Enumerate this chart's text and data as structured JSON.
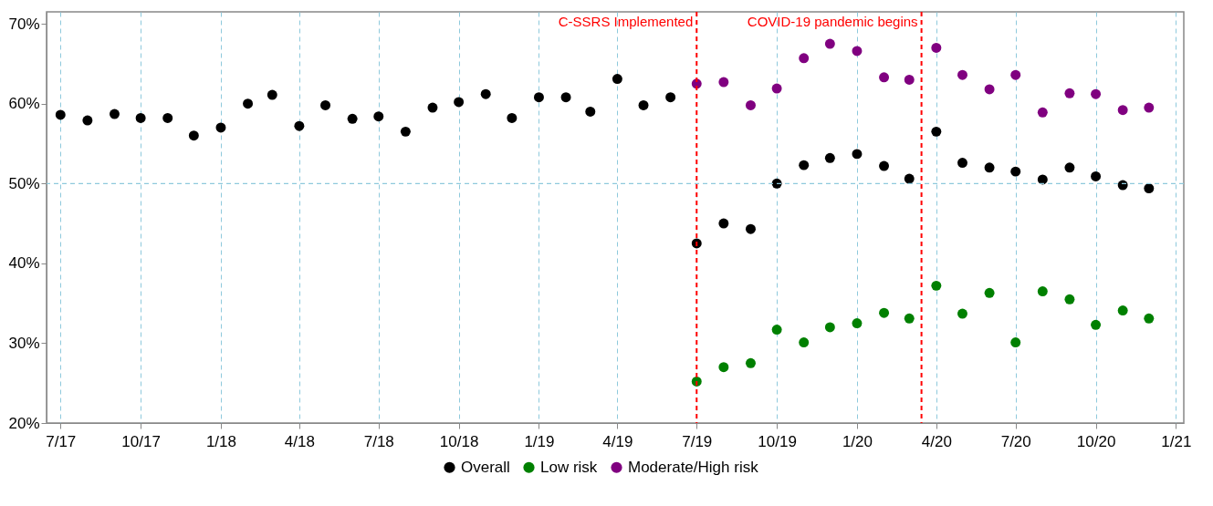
{
  "chart_data": {
    "type": "scatter",
    "series": [
      {
        "name": "Overall",
        "color": "#000000",
        "x": [
          "2017-07",
          "2017-08",
          "2017-09",
          "2017-10",
          "2017-11",
          "2017-12",
          "2018-01",
          "2018-02",
          "2018-03",
          "2018-04",
          "2018-05",
          "2018-06",
          "2018-07",
          "2018-08",
          "2018-09",
          "2018-10",
          "2018-11",
          "2018-12",
          "2019-01",
          "2019-02",
          "2019-03",
          "2019-04",
          "2019-05",
          "2019-06",
          "2019-07",
          "2019-08",
          "2019-09",
          "2019-10",
          "2019-11",
          "2019-12",
          "2020-01",
          "2020-02",
          "2020-03",
          "2020-04",
          "2020-05",
          "2020-06",
          "2020-07",
          "2020-08",
          "2020-09",
          "2020-10",
          "2020-11",
          "2020-12"
        ],
        "values": [
          58.6,
          57.9,
          58.7,
          58.2,
          58.2,
          56.0,
          57.0,
          60.0,
          61.1,
          57.2,
          59.8,
          58.1,
          58.4,
          56.5,
          59.5,
          60.2,
          61.2,
          58.2,
          60.8,
          60.8,
          59.0,
          63.1,
          59.8,
          60.8,
          42.5,
          45.0,
          44.3,
          50.0,
          52.3,
          53.2,
          53.7,
          52.2,
          50.6,
          56.5,
          52.6,
          52.0,
          51.5,
          50.5,
          52.0,
          50.9,
          49.8,
          49.4
        ]
      },
      {
        "name": "Low risk",
        "color": "#008000",
        "x": [
          "2019-07",
          "2019-08",
          "2019-09",
          "2019-10",
          "2019-11",
          "2019-12",
          "2020-01",
          "2020-02",
          "2020-03",
          "2020-04",
          "2020-05",
          "2020-06",
          "2020-07",
          "2020-08",
          "2020-09",
          "2020-10",
          "2020-11",
          "2020-12"
        ],
        "values": [
          25.2,
          27.0,
          27.5,
          31.7,
          30.1,
          32.0,
          32.5,
          33.8,
          33.1,
          37.2,
          33.7,
          36.3,
          30.1,
          36.5,
          35.5,
          32.3,
          34.1,
          33.1
        ]
      },
      {
        "name": "Moderate/High risk",
        "color": "#800080",
        "x": [
          "2019-07",
          "2019-08",
          "2019-09",
          "2019-10",
          "2019-11",
          "2019-12",
          "2020-01",
          "2020-02",
          "2020-03",
          "2020-04",
          "2020-05",
          "2020-06",
          "2020-07",
          "2020-08",
          "2020-09",
          "2020-10",
          "2020-11",
          "2020-12"
        ],
        "values": [
          62.5,
          62.7,
          59.8,
          61.9,
          65.7,
          67.5,
          66.6,
          63.3,
          63.0,
          67.0,
          63.6,
          61.8,
          63.6,
          58.9,
          61.3,
          61.2,
          59.2,
          59.5
        ]
      }
    ],
    "xlim": [
      "2017-06-15",
      "2021-01-10"
    ],
    "xticks": [
      {
        "value": "2017-07",
        "label": "7/17"
      },
      {
        "value": "2017-10",
        "label": "10/17"
      },
      {
        "value": "2018-01",
        "label": "1/18"
      },
      {
        "value": "2018-04",
        "label": "4/18"
      },
      {
        "value": "2018-07",
        "label": "7/18"
      },
      {
        "value": "2018-10",
        "label": "10/18"
      },
      {
        "value": "2019-01",
        "label": "1/19"
      },
      {
        "value": "2019-04",
        "label": "4/19"
      },
      {
        "value": "2019-07",
        "label": "7/19"
      },
      {
        "value": "2019-10",
        "label": "10/19"
      },
      {
        "value": "2020-01",
        "label": "1/20"
      },
      {
        "value": "2020-04",
        "label": "4/20"
      },
      {
        "value": "2020-07",
        "label": "7/20"
      },
      {
        "value": "2020-10",
        "label": "10/20"
      },
      {
        "value": "2021-01",
        "label": "1/21"
      }
    ],
    "ylim": [
      20,
      71.5
    ],
    "yticks": [
      {
        "value": 20,
        "label": "20%"
      },
      {
        "value": 30,
        "label": "30%"
      },
      {
        "value": 40,
        "label": "40%"
      },
      {
        "value": 50,
        "label": "50%"
      },
      {
        "value": 60,
        "label": "60%"
      },
      {
        "value": 70,
        "label": "70%"
      }
    ],
    "ref_lines": [
      {
        "axis": "x",
        "value": "2019-07",
        "label": "C-SSRS Implemented",
        "color": "#ff0000",
        "line_style": "dashed"
      },
      {
        "axis": "x",
        "value": "2020-03-15",
        "label": "COVID-19 pandemic begins",
        "color": "#ff0000",
        "line_style": "dashed"
      },
      {
        "axis": "y",
        "value": 50,
        "color": "#8ec9dc",
        "line_style": "dashed"
      }
    ],
    "grid": "x",
    "legend": "bottom",
    "marker": "circle"
  }
}
